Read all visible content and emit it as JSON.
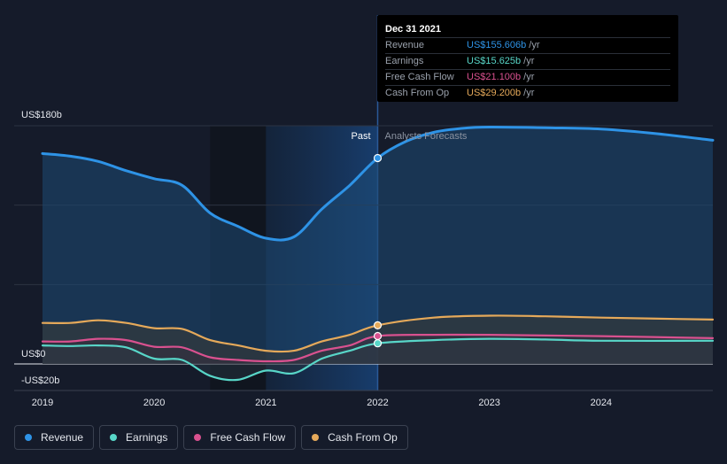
{
  "chart_data": {
    "type": "area",
    "y_axis": {
      "label_top": "US$180b",
      "label_zero": "US$0",
      "label_bottom": "-US$20b",
      "range": [
        -20,
        180
      ]
    },
    "x_axis": {
      "ticks": [
        "2019",
        "2020",
        "2021",
        "2022",
        "2023",
        "2024"
      ],
      "range": [
        2019.0,
        2025.0
      ]
    },
    "periods": {
      "past_label": "Past",
      "forecast_label": "Analysts Forecasts",
      "divider_x": 2022.0,
      "highlight_start": 2021.0
    },
    "series": [
      {
        "name": "Revenue",
        "color": "#2e93e6",
        "x": [
          2019.0,
          2019.25,
          2019.5,
          2019.75,
          2020.0,
          2020.25,
          2020.5,
          2020.75,
          2021.0,
          2021.25,
          2021.5,
          2021.75,
          2022.0,
          2022.25,
          2022.5,
          2022.75,
          2023.0,
          2023.5,
          2024.0,
          2024.5,
          2025.0
        ],
        "y": [
          159,
          157,
          153,
          146,
          140,
          135,
          114,
          104,
          95,
          96,
          117,
          135,
          155.6,
          168,
          175,
          178,
          179,
          178.5,
          177.5,
          174,
          169
        ]
      },
      {
        "name": "Earnings",
        "color": "#58d6c8",
        "x": [
          2019.0,
          2019.25,
          2019.5,
          2019.75,
          2020.0,
          2020.25,
          2020.5,
          2020.75,
          2021.0,
          2021.25,
          2021.5,
          2021.75,
          2022.0,
          2022.5,
          2023.0,
          2023.5,
          2024.0,
          2025.0
        ],
        "y": [
          14,
          13.5,
          14,
          12.5,
          4,
          3,
          -9,
          -12,
          -5,
          -7,
          4,
          10,
          15.6,
          18,
          19,
          18.5,
          17.5,
          17.5
        ]
      },
      {
        "name": "Free Cash Flow",
        "color": "#d9518f",
        "x": [
          2019.0,
          2019.25,
          2019.5,
          2019.75,
          2020.0,
          2020.25,
          2020.5,
          2020.75,
          2021.0,
          2021.25,
          2021.5,
          2021.75,
          2022.0,
          2022.5,
          2023.0,
          2023.5,
          2024.0,
          2025.0
        ],
        "y": [
          17,
          17,
          19,
          18,
          13,
          12.5,
          5,
          3,
          2,
          3,
          10,
          14,
          21.1,
          22,
          22,
          21.5,
          21,
          19.5
        ]
      },
      {
        "name": "Cash From Op",
        "color": "#e5a95a",
        "x": [
          2019.0,
          2019.25,
          2019.5,
          2019.75,
          2020.0,
          2020.25,
          2020.5,
          2020.75,
          2021.0,
          2021.25,
          2021.5,
          2021.75,
          2022.0,
          2022.5,
          2023.0,
          2023.5,
          2024.0,
          2025.0
        ],
        "y": [
          31,
          31,
          33,
          31,
          27,
          26.5,
          18,
          14,
          10,
          10,
          17,
          22,
          29.2,
          35,
          36.5,
          36,
          35,
          33.5
        ]
      }
    ],
    "tooltip": {
      "date": "Dec 31 2021",
      "rows": [
        {
          "label": "Revenue",
          "value": "US$155.606b",
          "unit": "/yr",
          "color": "#2e93e6"
        },
        {
          "label": "Earnings",
          "value": "US$15.625b",
          "unit": "/yr",
          "color": "#58d6c8"
        },
        {
          "label": "Free Cash Flow",
          "value": "US$21.100b",
          "unit": "/yr",
          "color": "#d9518f"
        },
        {
          "label": "Cash From Op",
          "value": "US$29.200b",
          "unit": "/yr",
          "color": "#e5a95a"
        }
      ]
    },
    "legend": [
      {
        "label": "Revenue",
        "color": "#2e93e6"
      },
      {
        "label": "Earnings",
        "color": "#58d6c8"
      },
      {
        "label": "Free Cash Flow",
        "color": "#d9518f"
      },
      {
        "label": "Cash From Op",
        "color": "#e5a95a"
      }
    ]
  }
}
